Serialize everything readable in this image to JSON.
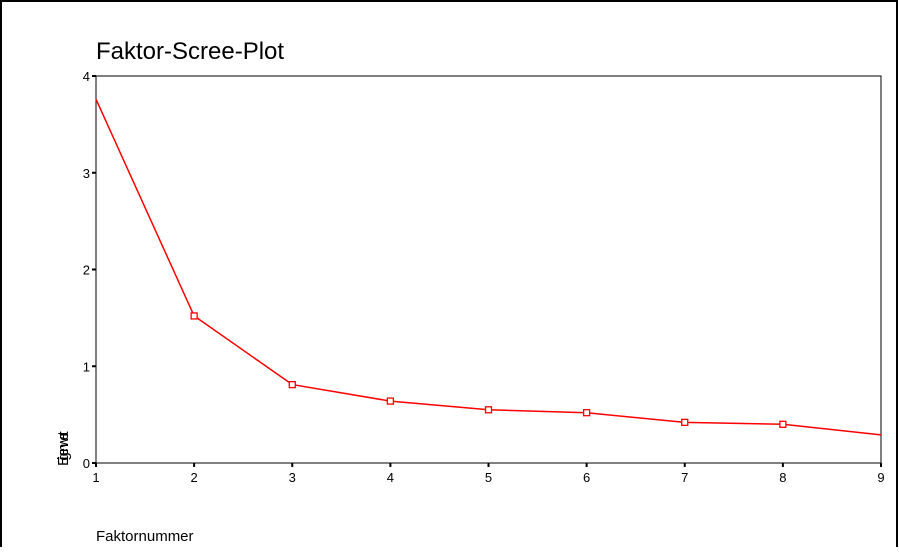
{
  "chart_data": {
    "type": "line",
    "title": "Faktor-Scree-Plot",
    "xlabel": "Faktornummer",
    "ylabel": "Eigenwert",
    "x": [
      1,
      2,
      3,
      4,
      5,
      6,
      7,
      8,
      9
    ],
    "xticks": [
      "1",
      "2",
      "3",
      "4",
      "5",
      "6",
      "7",
      "8",
      "9"
    ],
    "yticks": [
      "0",
      "1",
      "2",
      "3",
      "4"
    ],
    "xlim": [
      1,
      9
    ],
    "ylim": [
      0,
      4
    ],
    "grid": false,
    "series": [
      {
        "values": [
          3.76,
          1.52,
          0.81,
          0.64,
          0.55,
          0.52,
          0.42,
          0.4,
          0.29
        ],
        "color": "#ff0000",
        "marker": "square-open"
      }
    ]
  }
}
